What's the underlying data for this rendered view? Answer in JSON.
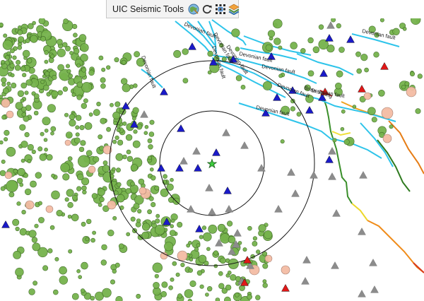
{
  "toolbar": {
    "title": "UIC Seismic Tools",
    "buttons": [
      {
        "name": "globe-tool-icon"
      },
      {
        "name": "refresh-icon"
      },
      {
        "name": "grid-select-icon"
      },
      {
        "name": "layers-icon"
      }
    ]
  },
  "map": {
    "fault_labels": [
      "Devonian fault",
      "Devonian fault",
      "Devonian fault",
      "Devonian fault",
      "Devonian fault",
      "Devonian fault",
      "Devonian fault",
      "Devonian fault",
      "Devonian fault",
      "Devonian fault",
      "Bone Spring",
      "Devonian fault"
    ],
    "colors": {
      "fault_line": "#2ec4ea",
      "earthquake_fill": "#76b34c",
      "earthquake_large_fill": "#f4bca4",
      "station_blue": "#1a1ac8",
      "station_gray": "#8c8c8c",
      "station_red": "#e01818",
      "epicenter_star": "#3ccc3c",
      "radius_ring": "#111111"
    }
  }
}
